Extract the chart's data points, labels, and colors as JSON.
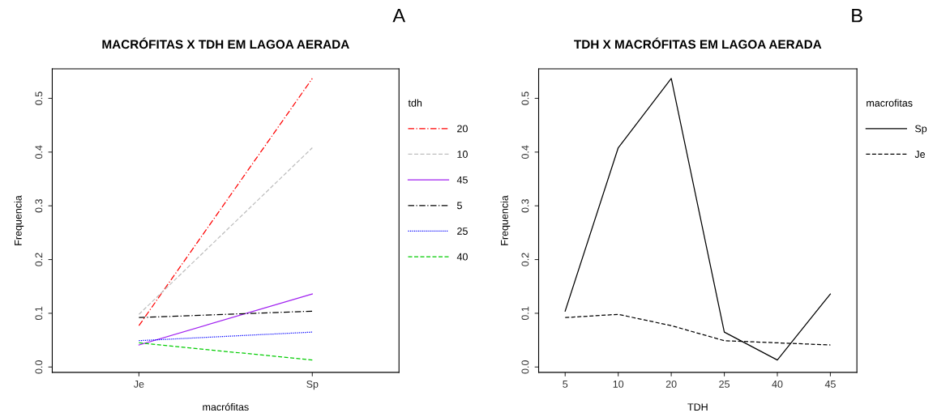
{
  "chart_data": [
    {
      "type": "line",
      "title": "MACRÓFITAS X TDH EM LAGOA AERADA",
      "xlabel": "macrófitas",
      "ylabel": "Frequencia",
      "legend_title": "tdh",
      "annotations": [
        "A"
      ],
      "categories": [
        "Je",
        "Sp"
      ],
      "ylim": [
        -0.01,
        0.555
      ],
      "yticks": [
        {
          "value": 0,
          "label": "0.0"
        },
        0.1,
        0.2,
        0.3,
        0.4,
        0.5
      ],
      "legend": "right",
      "grid": false,
      "marker": "none",
      "series": [
        {
          "name": "20",
          "color": "#ff0000",
          "line_style": "dashdot",
          "values": [
            0.077,
            0.537
          ]
        },
        {
          "name": "10",
          "color": "#bebebe",
          "line_style": "dashed",
          "values": [
            0.098,
            0.408
          ]
        },
        {
          "name": "45",
          "color": "#a020f0",
          "line_style": "solid",
          "values": [
            0.041,
            0.136
          ]
        },
        {
          "name": "5",
          "color": "#000000",
          "line_style": "dashdot",
          "values": [
            0.092,
            0.104
          ]
        },
        {
          "name": "25",
          "color": "#0000ff",
          "line_style": "dotted",
          "values": [
            0.049,
            0.065
          ]
        },
        {
          "name": "40",
          "color": "#00cc00",
          "line_style": "dashed",
          "values": [
            0.045,
            0.013
          ]
        }
      ]
    },
    {
      "type": "line",
      "title": "TDH X MACRÓFITAS EM LAGOA AERADA",
      "xlabel": "TDH",
      "ylabel": "Frequencia",
      "legend_title": "macrofitas",
      "annotations": [
        "B"
      ],
      "categories": [
        "5",
        "10",
        "20",
        "25",
        "40",
        "45"
      ],
      "ylim": [
        -0.01,
        0.555
      ],
      "yticks": [
        {
          "value": 0,
          "label": "0.0"
        },
        0.1,
        0.2,
        0.3,
        0.4,
        0.5
      ],
      "legend": "right",
      "grid": false,
      "marker": "none",
      "series": [
        {
          "name": "Sp",
          "color": "#000000",
          "line_style": "solid",
          "values": [
            0.104,
            0.408,
            0.537,
            0.065,
            0.013,
            0.136
          ]
        },
        {
          "name": "Je",
          "color": "#000000",
          "line_style": "dashed",
          "values": [
            0.092,
            0.098,
            0.077,
            0.049,
            0.045,
            0.041
          ]
        }
      ]
    }
  ]
}
